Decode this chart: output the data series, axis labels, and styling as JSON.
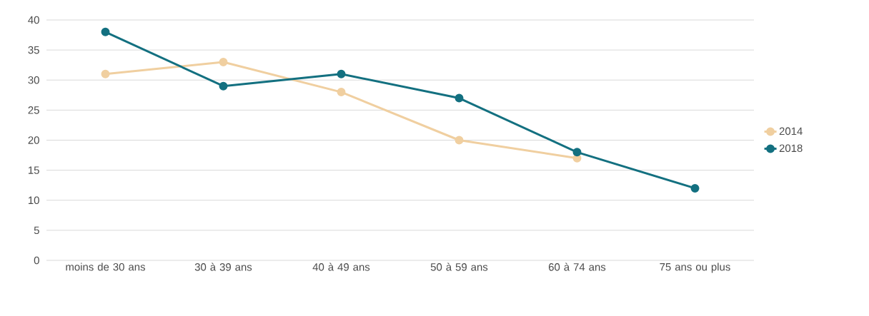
{
  "chart_data": {
    "type": "line",
    "categories": [
      "moins de 30 ans",
      "30 à 39 ans",
      "40 à 49 ans",
      "50 à 59 ans",
      "60 à 74 ans",
      "75 ans ou plus"
    ],
    "series": [
      {
        "name": "2014",
        "color": "#f0cfa0",
        "values": [
          31,
          33,
          28,
          20,
          17,
          null
        ]
      },
      {
        "name": "2018",
        "color": "#137080",
        "values": [
          38,
          29,
          31,
          27,
          18,
          12
        ]
      }
    ],
    "ylim": [
      0,
      40
    ],
    "yticks": [
      0,
      5,
      10,
      15,
      20,
      25,
      30,
      35,
      40
    ],
    "grid": "y",
    "legend": "right",
    "marker": "circle",
    "line_style": "solid"
  }
}
